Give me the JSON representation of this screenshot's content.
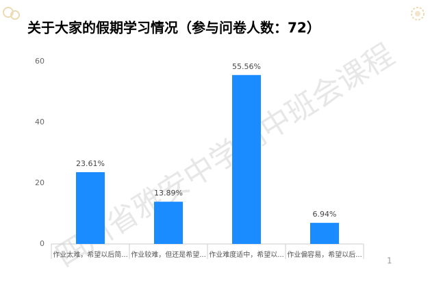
{
  "chart_data": {
    "type": "bar",
    "title": "关于大家的假期学习情况（参与问卷人数：72）",
    "categories": [
      "作业太难，希望以后简...",
      "作业较难，但还是希望...",
      "作业难度适中，希望以...",
      "作业偏容易，希望以后..."
    ],
    "values": [
      23.61,
      13.89,
      55.56,
      6.94
    ],
    "value_labels": [
      "23.61%",
      "13.89%",
      "55.56%",
      "6.94%"
    ],
    "color": "#1a8cff",
    "ylim": [
      0,
      60
    ],
    "yticks": [
      0,
      20,
      40,
      60
    ],
    "grid": false,
    "watermark": "四川省雅安中学高中班会课程",
    "page_number": "1"
  }
}
